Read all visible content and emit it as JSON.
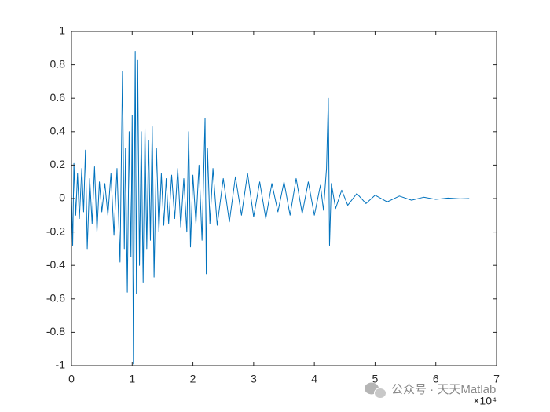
{
  "chart_data": {
    "type": "line",
    "x": [
      0,
      0.02,
      0.04,
      0.07,
      0.1,
      0.13,
      0.17,
      0.2,
      0.23,
      0.26,
      0.3,
      0.34,
      0.38,
      0.42,
      0.46,
      0.5,
      0.55,
      0.6,
      0.65,
      0.7,
      0.75,
      0.8,
      0.84,
      0.87,
      0.89,
      0.92,
      0.95,
      0.98,
      1.0,
      1.02,
      1.05,
      1.07,
      1.09,
      1.12,
      1.15,
      1.18,
      1.21,
      1.24,
      1.27,
      1.3,
      1.33,
      1.36,
      1.4,
      1.44,
      1.48,
      1.52,
      1.56,
      1.6,
      1.65,
      1.7,
      1.75,
      1.8,
      1.85,
      1.9,
      1.93,
      1.96,
      2.0,
      2.05,
      2.1,
      2.15,
      2.2,
      2.22,
      2.24,
      2.28,
      2.33,
      2.4,
      2.5,
      2.6,
      2.7,
      2.8,
      2.9,
      3.0,
      3.1,
      3.2,
      3.3,
      3.4,
      3.5,
      3.6,
      3.7,
      3.8,
      3.9,
      4.0,
      4.1,
      4.15,
      4.2,
      4.23,
      4.25,
      4.28,
      4.35,
      4.45,
      4.55,
      4.7,
      4.85,
      5.0,
      5.2,
      5.4,
      5.6,
      5.8,
      6.0,
      6.2,
      6.4,
      6.55
    ],
    "series": [
      {
        "color": "#0072bd",
        "values": [
          0.03,
          -0.28,
          0.21,
          -0.1,
          0.15,
          -0.12,
          0.18,
          -0.08,
          0.29,
          -0.3,
          0.12,
          -0.15,
          0.19,
          -0.2,
          0.1,
          -0.08,
          0.09,
          -0.1,
          0.15,
          -0.22,
          0.18,
          -0.38,
          0.76,
          -0.3,
          0.3,
          -0.56,
          0.4,
          -0.35,
          0.5,
          -0.99,
          0.88,
          -0.57,
          0.83,
          -0.4,
          0.4,
          -0.5,
          0.42,
          -0.3,
          0.35,
          -0.25,
          0.43,
          -0.47,
          0.3,
          -0.2,
          0.15,
          -0.16,
          0.12,
          -0.15,
          0.14,
          -0.12,
          0.18,
          -0.17,
          0.12,
          -0.2,
          0.4,
          -0.29,
          0.14,
          -0.15,
          0.2,
          -0.25,
          0.48,
          -0.45,
          0.3,
          -0.15,
          0.18,
          -0.16,
          0.12,
          -0.14,
          0.13,
          -0.1,
          0.15,
          -0.11,
          0.1,
          -0.12,
          0.09,
          -0.08,
          0.1,
          -0.1,
          0.12,
          -0.09,
          0.1,
          -0.1,
          0.08,
          -0.07,
          0.18,
          0.6,
          -0.28,
          0.09,
          -0.06,
          0.05,
          -0.04,
          0.03,
          -0.03,
          0.02,
          -0.02,
          0.015,
          -0.01,
          0.008,
          -0.005,
          0.003,
          -0.002,
          0.0
        ]
      }
    ],
    "xlim": [
      0,
      7
    ],
    "xticks": [
      0,
      1,
      2,
      3,
      4,
      5,
      6,
      7
    ],
    "ylim": [
      -1,
      1
    ],
    "yticks": [
      -1,
      -0.8,
      -0.6,
      -0.4,
      -0.2,
      0,
      0.2,
      0.4,
      0.6,
      0.8,
      1
    ],
    "x_multiplier": "×10⁴",
    "watermark": "公众号 · 天天Matlab"
  }
}
